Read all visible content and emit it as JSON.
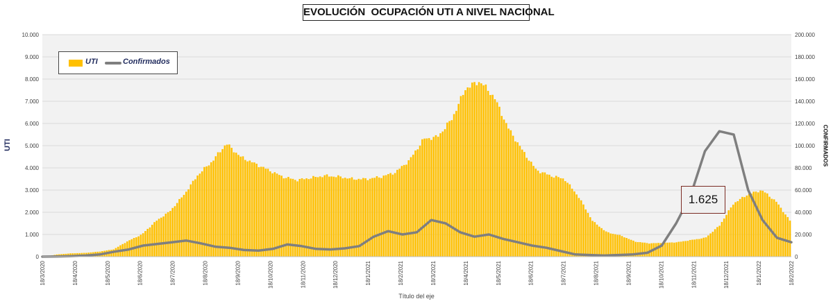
{
  "chart_data": {
    "type": "bar+line",
    "title": "EVOLUCIÓN  OCUPACIÓN UTI A NIVEL NACIONAL",
    "xlabel": "Título del eje",
    "ylabel_left": "UTI",
    "ylabel_right": "CONFIRMADOS",
    "ylim_left": [
      0,
      10000
    ],
    "ylim_right": [
      0,
      200000
    ],
    "yticks_left": [
      "0",
      "1.000",
      "2.000",
      "3.000",
      "4.000",
      "5.000",
      "6.000",
      "7.000",
      "8.000",
      "9.000",
      "10.000"
    ],
    "yticks_right": [
      "0",
      "20.000",
      "40.000",
      "60.000",
      "80.000",
      "100.000",
      "120.000",
      "140.000",
      "160.000",
      "180.000",
      "200.000"
    ],
    "x_tick_labels": [
      "18/3/2020",
      "18/4/2020",
      "18/5/2020",
      "18/6/2020",
      "18/7/2020",
      "18/8/2020",
      "18/9/2020",
      "18/10/2020",
      "18/11/2020",
      "18/12/2020",
      "18/1/2021",
      "18/2/2021",
      "18/3/2021",
      "18/4/2021",
      "18/5/2021",
      "18/6/2021",
      "18/7/2021",
      "18/8/2021",
      "18/9/2021",
      "18/10/2021",
      "18/11/2021",
      "18/12/2021",
      "18/1/2022",
      "18/2/2022"
    ],
    "annotation": "1.625",
    "series": [
      {
        "name": "UTI",
        "kind": "bar",
        "axis": "left",
        "color": "#FFC000",
        "values": [
          0,
          100,
          150,
          170,
          230,
          330,
          700,
          1000,
          1600,
          2050,
          2800,
          3700,
          4300,
          5100,
          4500,
          4200,
          3900,
          3600,
          3450,
          3550,
          3650,
          3600,
          3500,
          3500,
          3600,
          3800,
          4350,
          5300,
          5400,
          6200,
          7600,
          7900,
          7200,
          5800,
          4800,
          3900,
          3650,
          3500,
          2700,
          1600,
          1100,
          950,
          680,
          600,
          620,
          650,
          750,
          850,
          1400,
          2400,
          2800,
          3000,
          2500,
          1625
        ]
      },
      {
        "name": "Confirmados",
        "kind": "line",
        "axis": "right",
        "color": "#7F7F7F",
        "values": [
          0,
          200,
          500,
          1000,
          2000,
          4500,
          6500,
          10000,
          11500,
          13000,
          14500,
          12000,
          9000,
          8000,
          6000,
          5500,
          7000,
          11000,
          9500,
          7000,
          6500,
          7500,
          9500,
          18000,
          23000,
          20000,
          22000,
          33000,
          30000,
          22000,
          18000,
          20000,
          16000,
          13000,
          10000,
          8000,
          5000,
          2000,
          1500,
          1000,
          1500,
          2000,
          3500,
          10000,
          30000,
          55000,
          95000,
          113000,
          110000,
          60000,
          33000,
          17000,
          13000
        ]
      }
    ]
  }
}
